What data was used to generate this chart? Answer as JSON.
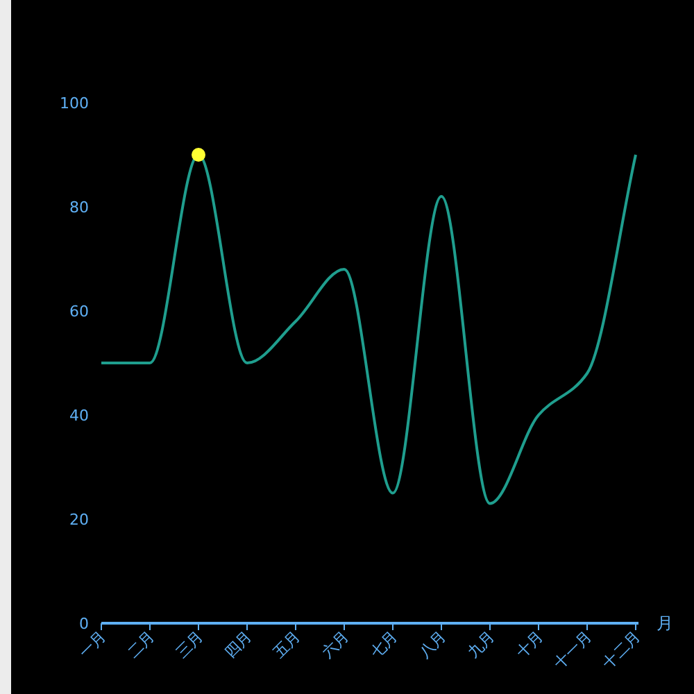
{
  "chart_data": {
    "type": "line",
    "xlabel": "月",
    "categories": [
      "一月",
      "二月",
      "三月",
      "四月",
      "五月",
      "六月",
      "七月",
      "八月",
      "九月",
      "十月",
      "十一月",
      "十二月"
    ],
    "series": [
      {
        "color": "#1f9e8e",
        "marker": "none",
        "values": [
          50,
          50,
          90,
          50,
          58,
          68,
          25,
          82,
          23,
          40,
          48,
          90
        ]
      },
      {
        "type": "scatter",
        "color": "#ffff33",
        "marker": "circle",
        "x": [
          "三月"
        ],
        "values": [
          90
        ]
      }
    ],
    "ylim": [
      0,
      100
    ],
    "yticks": [
      0,
      20,
      40,
      60,
      80,
      100
    ]
  }
}
